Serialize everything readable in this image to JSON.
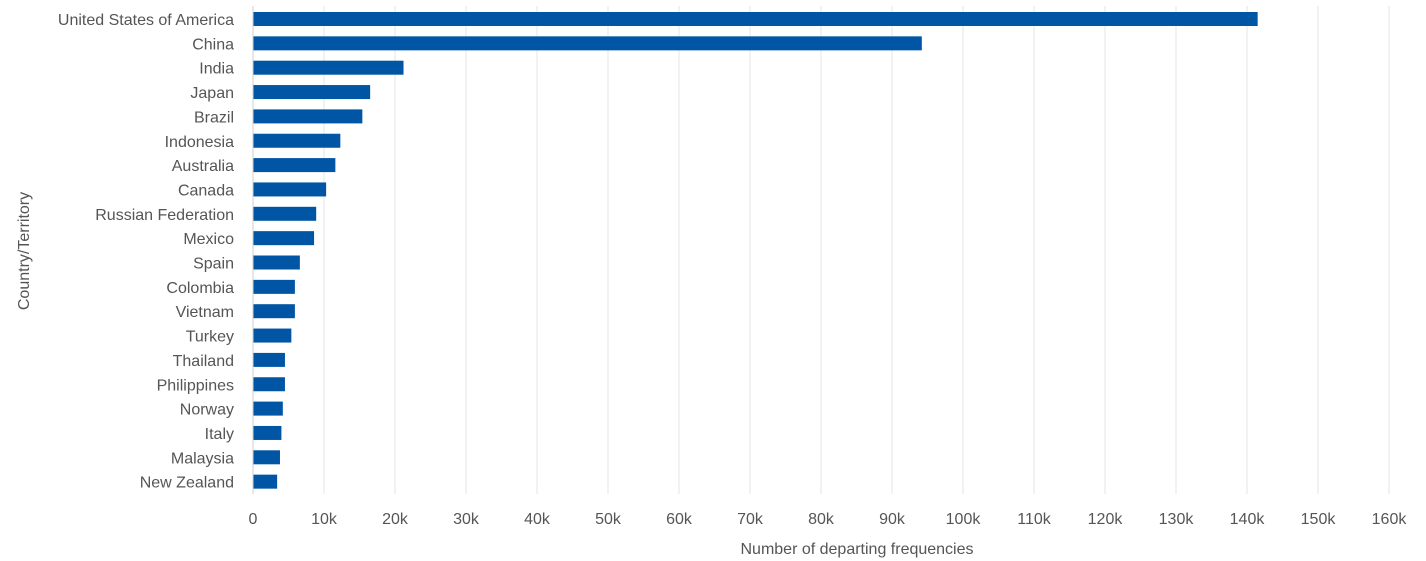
{
  "chart_data": {
    "type": "bar",
    "orientation": "horizontal",
    "categories": [
      "United States of America",
      "China",
      "India",
      "Japan",
      "Brazil",
      "Indonesia",
      "Australia",
      "Canada",
      "Russian Federation",
      "Mexico",
      "Spain",
      "Colombia",
      "Vietnam",
      "Turkey",
      "Thailand",
      "Philippines",
      "Norway",
      "Italy",
      "Malaysia",
      "New Zealand"
    ],
    "values": [
      141500,
      94200,
      21200,
      16500,
      15400,
      12300,
      11600,
      10300,
      8900,
      8600,
      6600,
      5900,
      5900,
      5400,
      4500,
      4500,
      4200,
      4000,
      3800,
      3400
    ],
    "xlabel": "Number of departing frequencies",
    "ylabel": "Country/Territory",
    "xlim": [
      0,
      160000
    ],
    "xticks": [
      0,
      10000,
      20000,
      30000,
      40000,
      50000,
      60000,
      70000,
      80000,
      90000,
      100000,
      110000,
      120000,
      130000,
      140000,
      150000,
      160000
    ],
    "xtick_labels": [
      "0",
      "10k",
      "20k",
      "30k",
      "40k",
      "50k",
      "60k",
      "70k",
      "80k",
      "90k",
      "100k",
      "110k",
      "120k",
      "130k",
      "140k",
      "150k",
      "160k"
    ],
    "grid": true,
    "legend": "none",
    "bar_color": "#0055a5"
  }
}
